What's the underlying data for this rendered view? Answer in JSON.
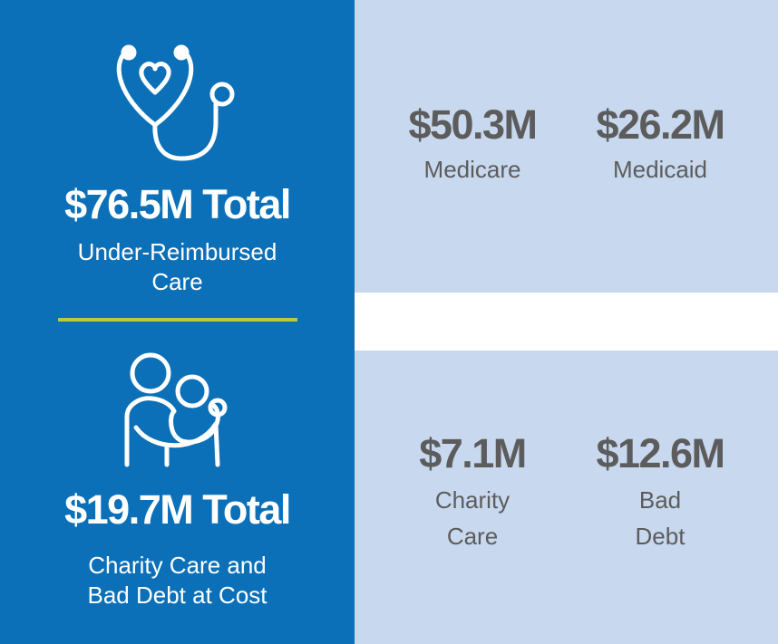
{
  "colors": {
    "primary_blue": "#0b70b8",
    "light_blue": "#c8d8ee",
    "accent_green": "#b3cd3b",
    "stat_gray": "#5c5c5c"
  },
  "top_section": {
    "icon": "stethoscope-heart-icon",
    "total": "$76.5M Total",
    "subtitle_line1": "Under-Reimbursed",
    "subtitle_line2": "Care",
    "stats": [
      {
        "value": "$50.3M",
        "label_line1": "Medicare",
        "label_line2": ""
      },
      {
        "value": "$26.2M",
        "label_line1": "Medicaid",
        "label_line2": ""
      }
    ]
  },
  "bottom_section": {
    "icon": "embrace-people-icon",
    "total": "$19.7M Total",
    "subtitle_line1": "Charity Care and",
    "subtitle_line2": "Bad Debt at Cost",
    "stats": [
      {
        "value": "$7.1M",
        "label_line1": "Charity",
        "label_line2": "Care"
      },
      {
        "value": "$12.6M",
        "label_line1": "Bad",
        "label_line2": "Debt"
      }
    ]
  }
}
